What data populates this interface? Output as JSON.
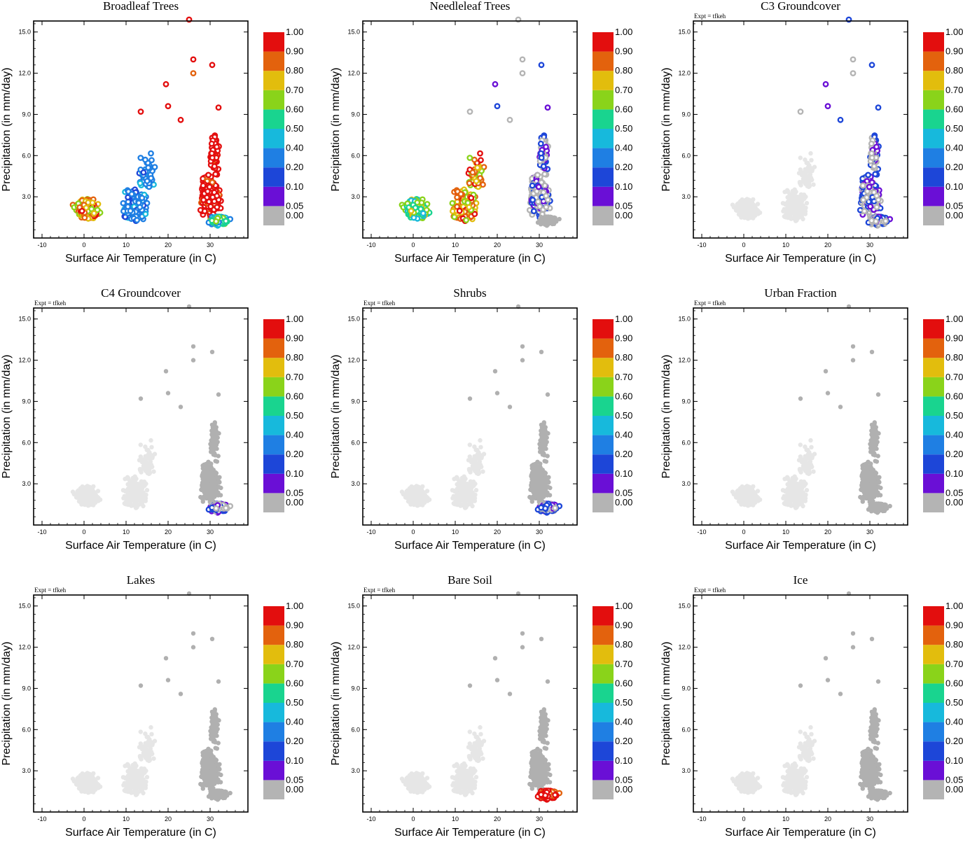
{
  "figure": {
    "expt_label": "Expt = tfkeh",
    "xlabel": "Surface Air Temperature (in C)",
    "ylabel": "Precipitation (in mm/day)"
  },
  "chart_data": {
    "type": "scatter",
    "x_range": [
      -12,
      39
    ],
    "y_range": [
      0,
      15.8
    ],
    "x_ticks": [
      -10,
      0,
      10,
      20,
      30
    ],
    "y_ticks": [
      "3.0",
      "6.0",
      "9.0",
      "12.0",
      "15.0"
    ],
    "colorbar": {
      "levels": [
        "0.00",
        "0.05",
        "0.10",
        "0.20",
        "0.40",
        "0.50",
        "0.60",
        "0.70",
        "0.80",
        "0.90",
        "1.00"
      ],
      "colors": [
        "#b4b4b4",
        "#6a0fd6",
        "#1d46d8",
        "#1f7fe3",
        "#17b9dc",
        "#19d48f",
        "#8ad31a",
        "#e2bd0d",
        "#e3620d",
        "#e30e0e"
      ],
      "zero_color_light": "#e6e6e6",
      "zero_color_dark": "#b0b0b0"
    },
    "panels": [
      {
        "title": "Broadleaf Trees",
        "show_expt": false,
        "dominant_fraction_by_region": {
          "cold": 0.8,
          "mid": 0.3,
          "warm_wet": 1.0,
          "hot_dry": 0.5
        }
      },
      {
        "title": "Needleleaf Trees",
        "show_expt": false,
        "dominant_fraction_by_region": {
          "cold": 0.6,
          "mid": 0.8,
          "warm_wet": 0.05,
          "hot_dry": 0.0
        }
      },
      {
        "title": "C3 Groundcover",
        "show_expt": true,
        "dominant_fraction_by_region": {
          "cold": 0.0,
          "mid": 0.0,
          "warm_wet": 0.05,
          "hot_dry": 0.05
        }
      },
      {
        "title": "C4 Groundcover",
        "show_expt": true,
        "dominant_fraction_by_region": {
          "cold": 0.0,
          "mid": 0.0,
          "warm_wet": 0.0,
          "hot_dry": 0.05
        }
      },
      {
        "title": "Shrubs",
        "show_expt": true,
        "dominant_fraction_by_region": {
          "cold": 0.0,
          "mid": 0.0,
          "warm_wet": 0.0,
          "hot_dry": 0.05
        }
      },
      {
        "title": "Urban Fraction",
        "show_expt": true,
        "dominant_fraction_by_region": {
          "cold": 0.0,
          "mid": 0.0,
          "warm_wet": 0.0,
          "hot_dry": 0.0
        }
      },
      {
        "title": "Lakes",
        "show_expt": true,
        "dominant_fraction_by_region": {
          "cold": 0.0,
          "mid": 0.0,
          "warm_wet": 0.0,
          "hot_dry": 0.0
        }
      },
      {
        "title": "Bare Soil",
        "show_expt": true,
        "dominant_fraction_by_region": {
          "cold": 0.0,
          "mid": 0.0,
          "warm_wet": 0.0,
          "hot_dry": 1.0
        }
      },
      {
        "title": "Ice",
        "show_expt": true,
        "dominant_fraction_by_region": {
          "cold": 0.0,
          "mid": 0.0,
          "warm_wet": 0.0,
          "hot_dry": 0.0
        }
      }
    ]
  }
}
